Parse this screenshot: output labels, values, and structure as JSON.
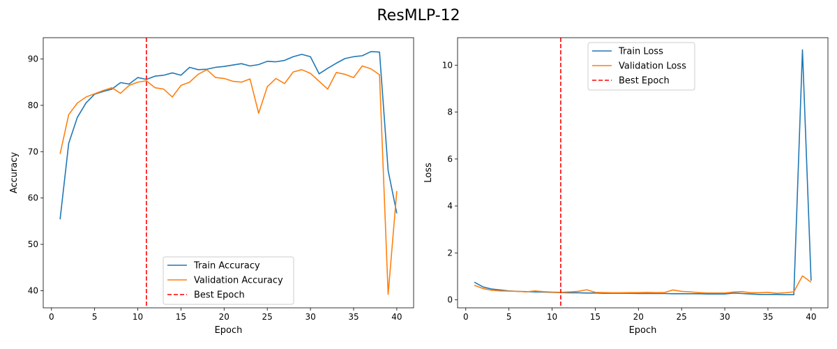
{
  "figure": {
    "title": "ResMLP-12"
  },
  "chart_data": [
    {
      "type": "line",
      "xlabel": "Epoch",
      "ylabel": "Accuracy",
      "xlim": [
        -0.95,
        41.95
      ],
      "ylim": [
        36.3,
        94.6
      ],
      "xticks": [
        0,
        5,
        10,
        15,
        20,
        25,
        30,
        35,
        40
      ],
      "yticks": [
        40,
        50,
        60,
        70,
        80,
        90
      ],
      "legend_position": "lower-center",
      "best_epoch": 11,
      "x": [
        1,
        2,
        3,
        4,
        5,
        6,
        7,
        8,
        9,
        10,
        11,
        12,
        13,
        14,
        15,
        16,
        17,
        18,
        19,
        20,
        21,
        22,
        23,
        24,
        25,
        26,
        27,
        28,
        29,
        30,
        31,
        32,
        33,
        34,
        35,
        36,
        37,
        38,
        39,
        40
      ],
      "series": [
        {
          "name": "Train Accuracy",
          "color": "#1f77b4",
          "values": [
            55.4,
            71.8,
            77.4,
            80.5,
            82.4,
            83.0,
            83.5,
            84.9,
            84.6,
            86.0,
            85.6,
            86.3,
            86.5,
            87.0,
            86.5,
            88.2,
            87.7,
            87.8,
            88.2,
            88.4,
            88.7,
            89.0,
            88.5,
            88.8,
            89.5,
            89.4,
            89.7,
            90.5,
            91.0,
            90.5,
            86.8,
            88.0,
            89.1,
            90.1,
            90.5,
            90.7,
            91.6,
            91.5,
            65.9,
            56.7
          ]
        },
        {
          "name": "Validation Accuracy",
          "color": "#ff7f0e",
          "values": [
            69.5,
            78.0,
            80.5,
            81.8,
            82.5,
            83.2,
            83.8,
            82.6,
            84.3,
            85.0,
            85.3,
            83.8,
            83.5,
            81.8,
            84.3,
            85.0,
            86.7,
            87.7,
            86.0,
            85.8,
            85.2,
            85.0,
            85.7,
            78.3,
            84.0,
            85.8,
            84.7,
            87.2,
            87.7,
            86.9,
            85.2,
            83.5,
            87.1,
            86.7,
            86.0,
            88.5,
            87.9,
            86.6,
            39.2,
            61.5
          ]
        }
      ],
      "vline": {
        "name": "Best Epoch",
        "x": 11,
        "color": "#ff0000"
      }
    },
    {
      "type": "line",
      "xlabel": "Epoch",
      "ylabel": "Loss",
      "xlim": [
        -0.95,
        41.95
      ],
      "ylim": [
        -0.34,
        11.17
      ],
      "xticks": [
        0,
        5,
        10,
        15,
        20,
        25,
        30,
        35,
        40
      ],
      "yticks": [
        0,
        2,
        4,
        6,
        8,
        10
      ],
      "legend_position": "upper-center",
      "best_epoch": 11,
      "x": [
        1,
        2,
        3,
        4,
        5,
        6,
        7,
        8,
        9,
        10,
        11,
        12,
        13,
        14,
        15,
        16,
        17,
        18,
        19,
        20,
        21,
        22,
        23,
        24,
        25,
        26,
        27,
        28,
        29,
        30,
        31,
        32,
        33,
        34,
        35,
        36,
        37,
        38,
        39,
        40
      ],
      "series": [
        {
          "name": "Train Loss",
          "color": "#1f77b4",
          "values": [
            0.75,
            0.55,
            0.46,
            0.42,
            0.38,
            0.36,
            0.35,
            0.34,
            0.33,
            0.32,
            0.31,
            0.3,
            0.3,
            0.29,
            0.29,
            0.28,
            0.28,
            0.28,
            0.28,
            0.27,
            0.27,
            0.27,
            0.27,
            0.26,
            0.26,
            0.26,
            0.26,
            0.25,
            0.25,
            0.25,
            0.29,
            0.27,
            0.25,
            0.23,
            0.23,
            0.23,
            0.22,
            0.22,
            10.65,
            0.82
          ]
        },
        {
          "name": "Validation Loss",
          "color": "#ff7f0e",
          "values": [
            0.62,
            0.48,
            0.41,
            0.38,
            0.37,
            0.36,
            0.34,
            0.38,
            0.35,
            0.33,
            0.32,
            0.34,
            0.36,
            0.43,
            0.32,
            0.31,
            0.3,
            0.3,
            0.31,
            0.31,
            0.32,
            0.31,
            0.31,
            0.42,
            0.36,
            0.34,
            0.31,
            0.29,
            0.29,
            0.29,
            0.33,
            0.35,
            0.3,
            0.3,
            0.32,
            0.28,
            0.3,
            0.34,
            1.02,
            0.75
          ]
        }
      ],
      "vline": {
        "name": "Best Epoch",
        "x": 11,
        "color": "#ff0000"
      }
    }
  ]
}
